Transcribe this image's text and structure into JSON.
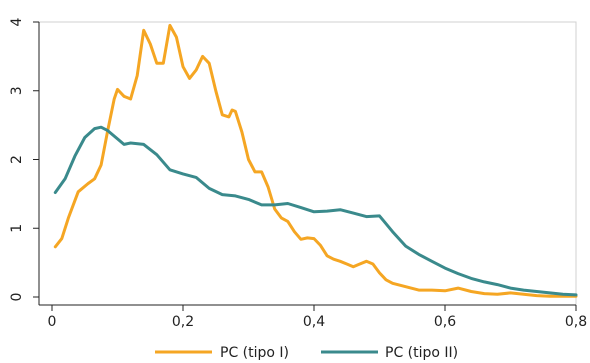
{
  "chart_data": {
    "type": "line",
    "title": "",
    "xlabel": "",
    "ylabel": "",
    "xlim": [
      0,
      0.8
    ],
    "ylim": [
      0,
      4
    ],
    "x_ticks": [
      {
        "value": 0,
        "label": "0"
      },
      {
        "value": 0.2,
        "label": "0,2"
      },
      {
        "value": 0.4,
        "label": "0,4"
      },
      {
        "value": 0.6,
        "label": "0,6"
      },
      {
        "value": 0.8,
        "label": "0,8"
      }
    ],
    "y_ticks": [
      {
        "value": 0,
        "label": "0"
      },
      {
        "value": 1,
        "label": "1"
      },
      {
        "value": 2,
        "label": "2"
      },
      {
        "value": 3,
        "label": "3"
      },
      {
        "value": 4,
        "label": "4"
      }
    ],
    "grid": false,
    "legend_position": "bottom",
    "series": [
      {
        "name": "PC (tipo I)",
        "color": "#F5A623",
        "x": [
          0.005,
          0.015,
          0.025,
          0.04,
          0.055,
          0.065,
          0.075,
          0.085,
          0.095,
          0.1,
          0.11,
          0.12,
          0.13,
          0.14,
          0.15,
          0.16,
          0.17,
          0.18,
          0.19,
          0.2,
          0.21,
          0.22,
          0.23,
          0.24,
          0.25,
          0.26,
          0.27,
          0.275,
          0.28,
          0.29,
          0.3,
          0.31,
          0.32,
          0.33,
          0.34,
          0.35,
          0.36,
          0.37,
          0.38,
          0.39,
          0.4,
          0.41,
          0.42,
          0.43,
          0.44,
          0.45,
          0.46,
          0.47,
          0.48,
          0.49,
          0.5,
          0.51,
          0.52,
          0.54,
          0.56,
          0.58,
          0.6,
          0.62,
          0.64,
          0.66,
          0.68,
          0.7,
          0.72,
          0.74,
          0.76,
          0.78,
          0.8
        ],
        "y": [
          0.73,
          0.85,
          1.15,
          1.53,
          1.65,
          1.72,
          1.92,
          2.42,
          2.88,
          3.02,
          2.92,
          2.88,
          3.22,
          3.88,
          3.68,
          3.4,
          3.4,
          3.95,
          3.78,
          3.35,
          3.18,
          3.3,
          3.5,
          3.4,
          3.0,
          2.65,
          2.62,
          2.72,
          2.7,
          2.4,
          2.0,
          1.82,
          1.82,
          1.6,
          1.28,
          1.15,
          1.1,
          0.95,
          0.84,
          0.86,
          0.85,
          0.75,
          0.6,
          0.55,
          0.52,
          0.48,
          0.44,
          0.48,
          0.52,
          0.48,
          0.35,
          0.25,
          0.2,
          0.15,
          0.1,
          0.1,
          0.09,
          0.13,
          0.08,
          0.05,
          0.04,
          0.06,
          0.04,
          0.02,
          0.01,
          0.01,
          0.01
        ]
      },
      {
        "name": "PC (tipo II)",
        "color": "#3A8A8C",
        "x": [
          0.005,
          0.02,
          0.035,
          0.05,
          0.065,
          0.075,
          0.085,
          0.1,
          0.11,
          0.12,
          0.14,
          0.16,
          0.18,
          0.2,
          0.22,
          0.24,
          0.26,
          0.28,
          0.3,
          0.32,
          0.34,
          0.36,
          0.38,
          0.4,
          0.42,
          0.44,
          0.46,
          0.48,
          0.5,
          0.52,
          0.54,
          0.56,
          0.58,
          0.6,
          0.62,
          0.64,
          0.66,
          0.68,
          0.7,
          0.72,
          0.74,
          0.76,
          0.78,
          0.8
        ],
        "y": [
          1.52,
          1.72,
          2.05,
          2.32,
          2.45,
          2.47,
          2.42,
          2.3,
          2.22,
          2.24,
          2.22,
          2.07,
          1.85,
          1.79,
          1.74,
          1.58,
          1.49,
          1.47,
          1.42,
          1.34,
          1.34,
          1.36,
          1.3,
          1.24,
          1.25,
          1.27,
          1.22,
          1.17,
          1.18,
          0.95,
          0.74,
          0.62,
          0.52,
          0.42,
          0.34,
          0.27,
          0.22,
          0.18,
          0.13,
          0.1,
          0.08,
          0.06,
          0.04,
          0.03
        ]
      }
    ]
  }
}
